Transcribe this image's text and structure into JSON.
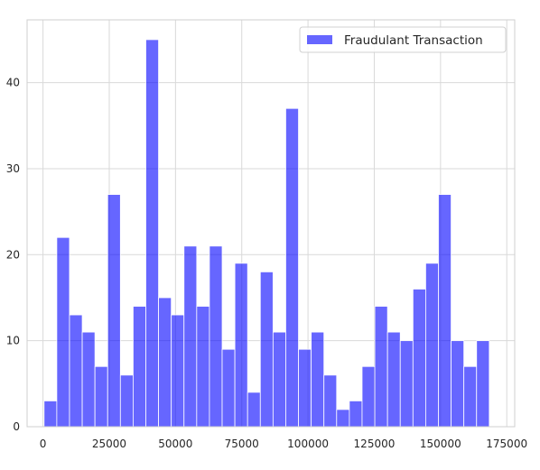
{
  "chart_data": {
    "type": "bar",
    "subtype": "histogram",
    "title": "",
    "xlabel": "",
    "ylabel": "",
    "xlim": [
      -6000,
      178000
    ],
    "ylim": [
      0,
      47.3
    ],
    "x_ticks": [
      0,
      25000,
      50000,
      75000,
      100000,
      125000,
      150000,
      175000
    ],
    "y_ticks": [
      0,
      10,
      20,
      30,
      40
    ],
    "grid": true,
    "legend_position": "top-right",
    "bin_width": 4800,
    "series": [
      {
        "name": "Fraudulant Transaction",
        "color": "#0000ff",
        "opacity": 0.6,
        "bin_starts": [
          406,
          5206,
          10006,
          14806,
          19606,
          24406,
          29206,
          34006,
          38806,
          43606,
          48406,
          53206,
          58006,
          62806,
          67606,
          72406,
          77206,
          82006,
          86806,
          91606,
          96406,
          101206,
          106006,
          110806,
          115606,
          120406,
          125206,
          130006,
          134806,
          139606,
          144406,
          149206,
          154006,
          158806,
          163606
        ],
        "values": [
          3,
          22,
          13,
          11,
          7,
          27,
          6,
          14,
          45,
          15,
          13,
          21,
          14,
          21,
          9,
          19,
          4,
          18,
          11,
          37,
          9,
          11,
          6,
          2,
          3,
          7,
          14,
          11,
          10,
          16,
          19,
          27,
          10,
          7,
          10
        ]
      }
    ]
  }
}
